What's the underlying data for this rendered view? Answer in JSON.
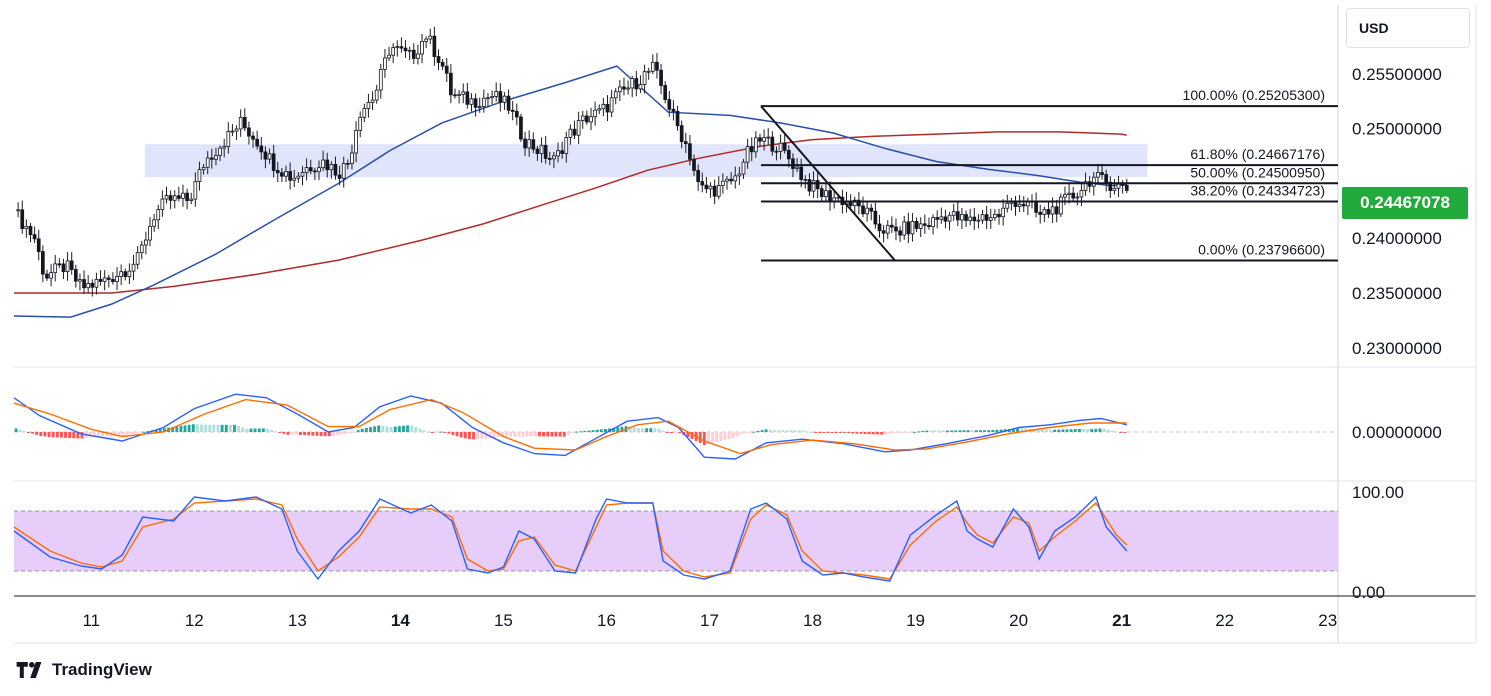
{
  "currency": "USD",
  "current_price": "0.24467078",
  "brand": "TradingView",
  "colors": {
    "bull": "#22ab94",
    "bear": "#f23645",
    "ma_fast": "#2a4fa8",
    "ma_slow": "#b22a2a",
    "zone": "#d6dcfb",
    "macd_line": "#2962ff",
    "signal_line": "#ff6d00",
    "rsi_band": "#e6cdfa",
    "price_tag": "#22ab3c"
  },
  "chart_data": [
    {
      "type": "candlestick",
      "panel": "price",
      "ylim": [
        0.2275,
        0.262
      ],
      "y_ticks": [
        "0.25500000",
        "0.25000000",
        "0.24000000",
        "0.23500000",
        "0.23000000"
      ],
      "x_ticks": [
        "11",
        "12",
        "13",
        "14",
        "15",
        "16",
        "17",
        "18",
        "19",
        "20",
        "21",
        "22",
        "23"
      ],
      "x_tick_positions": [
        11,
        12,
        13,
        14,
        15,
        16,
        17,
        18,
        19,
        20,
        21,
        22,
        23
      ],
      "bold_ticks": [
        "14",
        "21"
      ],
      "xlim": [
        10.25,
        23.1
      ],
      "close_path": [
        [
          10.25,
          0.2425
        ],
        [
          10.45,
          0.24
        ],
        [
          10.55,
          0.2365
        ],
        [
          10.75,
          0.2375
        ],
        [
          10.9,
          0.2355
        ],
        [
          11.1,
          0.236
        ],
        [
          11.3,
          0.237
        ],
        [
          11.45,
          0.238
        ],
        [
          11.6,
          0.242
        ],
        [
          11.75,
          0.2435
        ],
        [
          11.95,
          0.2435
        ],
        [
          12.1,
          0.247
        ],
        [
          12.3,
          0.249
        ],
        [
          12.45,
          0.2505
        ],
        [
          12.6,
          0.249
        ],
        [
          12.75,
          0.247
        ],
        [
          12.95,
          0.2455
        ],
        [
          13.1,
          0.2465
        ],
        [
          13.25,
          0.247
        ],
        [
          13.4,
          0.246
        ],
        [
          13.5,
          0.247
        ],
        [
          13.6,
          0.2515
        ],
        [
          13.75,
          0.253
        ],
        [
          13.9,
          0.2575
        ],
        [
          14.1,
          0.2565
        ],
        [
          14.25,
          0.2585
        ],
        [
          14.4,
          0.256
        ],
        [
          14.5,
          0.253
        ],
        [
          14.7,
          0.2525
        ],
        [
          14.9,
          0.253
        ],
        [
          15.05,
          0.252
        ],
        [
          15.2,
          0.249
        ],
        [
          15.35,
          0.248
        ],
        [
          15.5,
          0.247
        ],
        [
          15.6,
          0.249
        ],
        [
          15.8,
          0.251
        ],
        [
          15.95,
          0.2515
        ],
        [
          16.1,
          0.253
        ],
        [
          16.25,
          0.254
        ],
        [
          16.45,
          0.2555
        ],
        [
          16.55,
          0.2535
        ],
        [
          16.65,
          0.251
        ],
        [
          16.8,
          0.248
        ],
        [
          16.9,
          0.2445
        ],
        [
          17.1,
          0.2445
        ],
        [
          17.25,
          0.2455
        ],
        [
          17.35,
          0.2475
        ],
        [
          17.5,
          0.249
        ],
        [
          17.65,
          0.2485
        ],
        [
          17.8,
          0.247
        ],
        [
          17.95,
          0.245
        ],
        [
          18.1,
          0.244
        ],
        [
          18.3,
          0.2435
        ],
        [
          18.5,
          0.2425
        ],
        [
          18.65,
          0.241
        ],
        [
          18.8,
          0.2405
        ],
        [
          18.95,
          0.241
        ],
        [
          19.1,
          0.2412
        ],
        [
          19.3,
          0.2422
        ],
        [
          19.5,
          0.2415
        ],
        [
          19.65,
          0.242
        ],
        [
          19.8,
          0.242
        ],
        [
          19.95,
          0.2435
        ],
        [
          20.1,
          0.243
        ],
        [
          20.2,
          0.242
        ],
        [
          20.4,
          0.243
        ],
        [
          20.55,
          0.244
        ],
        [
          20.7,
          0.2455
        ],
        [
          20.9,
          0.245
        ],
        [
          21.05,
          0.2445
        ]
      ],
      "ma_fast": [
        [
          10.25,
          0.2329
        ],
        [
          10.8,
          0.2328
        ],
        [
          11.2,
          0.234
        ],
        [
          11.6,
          0.2357
        ],
        [
          12.2,
          0.2385
        ],
        [
          12.8,
          0.2418
        ],
        [
          13.4,
          0.245
        ],
        [
          13.9,
          0.248
        ],
        [
          14.4,
          0.2505
        ],
        [
          15.0,
          0.2525
        ],
        [
          15.6,
          0.2542
        ],
        [
          16.1,
          0.2557
        ],
        [
          16.6,
          0.2515
        ],
        [
          17.2,
          0.2512
        ],
        [
          17.7,
          0.2505
        ],
        [
          18.2,
          0.2496
        ],
        [
          18.7,
          0.2482
        ],
        [
          19.2,
          0.247
        ],
        [
          19.7,
          0.2463
        ],
        [
          20.2,
          0.2457
        ],
        [
          20.6,
          0.2451
        ],
        [
          20.9,
          0.2448
        ],
        [
          21.05,
          0.2449
        ]
      ],
      "ma_slow": [
        [
          10.25,
          0.235
        ],
        [
          11.2,
          0.235
        ],
        [
          11.8,
          0.2356
        ],
        [
          12.6,
          0.2367
        ],
        [
          13.4,
          0.238
        ],
        [
          14.2,
          0.2398
        ],
        [
          14.8,
          0.2413
        ],
        [
          15.4,
          0.2431
        ],
        [
          15.9,
          0.2446
        ],
        [
          16.4,
          0.2462
        ],
        [
          16.9,
          0.2473
        ],
        [
          17.5,
          0.2484
        ],
        [
          18.0,
          0.249
        ],
        [
          18.6,
          0.2493
        ],
        [
          19.2,
          0.2495
        ],
        [
          19.8,
          0.2497
        ],
        [
          20.4,
          0.2497
        ],
        [
          21.0,
          0.2495
        ],
        [
          21.05,
          0.2494
        ]
      ],
      "zone": {
        "x": [
          11.52,
          21.25
        ],
        "y": [
          0.24557,
          0.24857
        ]
      },
      "fibonacci": {
        "x": [
          17.5,
          23.1
        ],
        "levels": [
          {
            "label": "100.00% (0.25205300)",
            "value": 0.252053
          },
          {
            "label": "61.80% (0.24667176)",
            "value": 0.24667176
          },
          {
            "label": "50.00% (0.24500950)",
            "value": 0.2450095
          },
          {
            "label": "38.20% (0.24334723)",
            "value": 0.24334723
          },
          {
            "label": "0.00% (0.23796600)",
            "value": 0.237966
          }
        ],
        "trendline": [
          [
            17.5,
            0.25205
          ],
          [
            18.8,
            0.23797
          ]
        ]
      },
      "last_price": 0.24467078
    },
    {
      "type": "macd",
      "panel": "macd",
      "ylim": [
        -1,
        1
      ],
      "y_ticks": [
        "0.00000000"
      ],
      "macd": [
        [
          10.25,
          0.38
        ],
        [
          10.5,
          0.18
        ],
        [
          10.9,
          -0.02
        ],
        [
          11.3,
          -0.1
        ],
        [
          11.7,
          0.05
        ],
        [
          12.0,
          0.26
        ],
        [
          12.4,
          0.42
        ],
        [
          12.7,
          0.38
        ],
        [
          13.0,
          0.2
        ],
        [
          13.3,
          0.0
        ],
        [
          13.55,
          0.05
        ],
        [
          13.8,
          0.28
        ],
        [
          14.1,
          0.4
        ],
        [
          14.4,
          0.32
        ],
        [
          14.7,
          0.05
        ],
        [
          15.0,
          -0.12
        ],
        [
          15.3,
          -0.24
        ],
        [
          15.6,
          -0.26
        ],
        [
          15.9,
          -0.07
        ],
        [
          16.2,
          0.12
        ],
        [
          16.5,
          0.16
        ],
        [
          16.7,
          0.05
        ],
        [
          16.95,
          -0.28
        ],
        [
          17.25,
          -0.3
        ],
        [
          17.55,
          -0.12
        ],
        [
          17.9,
          -0.08
        ],
        [
          18.3,
          -0.13
        ],
        [
          18.7,
          -0.22
        ],
        [
          18.95,
          -0.2
        ],
        [
          19.3,
          -0.13
        ],
        [
          19.7,
          -0.04
        ],
        [
          20.0,
          0.05
        ],
        [
          20.3,
          0.08
        ],
        [
          20.6,
          0.13
        ],
        [
          20.8,
          0.15
        ],
        [
          21.05,
          0.08
        ]
      ],
      "signal": [
        [
          10.25,
          0.32
        ],
        [
          10.6,
          0.2
        ],
        [
          11.0,
          0.03
        ],
        [
          11.3,
          -0.05
        ],
        [
          11.7,
          0.0
        ],
        [
          12.1,
          0.2
        ],
        [
          12.5,
          0.36
        ],
        [
          12.9,
          0.3
        ],
        [
          13.3,
          0.06
        ],
        [
          13.6,
          0.06
        ],
        [
          13.9,
          0.25
        ],
        [
          14.3,
          0.36
        ],
        [
          14.6,
          0.22
        ],
        [
          15.0,
          -0.05
        ],
        [
          15.3,
          -0.18
        ],
        [
          15.7,
          -0.2
        ],
        [
          16.0,
          -0.05
        ],
        [
          16.3,
          0.08
        ],
        [
          16.6,
          0.12
        ],
        [
          16.95,
          -0.1
        ],
        [
          17.3,
          -0.24
        ],
        [
          17.6,
          -0.14
        ],
        [
          18.0,
          -0.09
        ],
        [
          18.4,
          -0.13
        ],
        [
          18.8,
          -0.2
        ],
        [
          19.1,
          -0.19
        ],
        [
          19.5,
          -0.11
        ],
        [
          19.9,
          -0.02
        ],
        [
          20.3,
          0.05
        ],
        [
          20.7,
          0.1
        ],
        [
          21.05,
          0.1
        ]
      ]
    },
    {
      "type": "stochastic",
      "panel": "oscillator",
      "ylim": [
        0,
        100
      ],
      "y_ticks": [
        "100.00",
        "0.00"
      ],
      "band": [
        20,
        80
      ],
      "k_line": [
        [
          10.25,
          60
        ],
        [
          10.6,
          34
        ],
        [
          10.9,
          25
        ],
        [
          11.1,
          22
        ],
        [
          11.3,
          36
        ],
        [
          11.5,
          74
        ],
        [
          11.8,
          70
        ],
        [
          12.0,
          94
        ],
        [
          12.3,
          90
        ],
        [
          12.6,
          94
        ],
        [
          12.85,
          82
        ],
        [
          13.0,
          40
        ],
        [
          13.2,
          12
        ],
        [
          13.4,
          40
        ],
        [
          13.6,
          60
        ],
        [
          13.8,
          92
        ],
        [
          14.1,
          78
        ],
        [
          14.3,
          86
        ],
        [
          14.5,
          70
        ],
        [
          14.65,
          22
        ],
        [
          14.85,
          18
        ],
        [
          15.0,
          24
        ],
        [
          15.15,
          60
        ],
        [
          15.3,
          52
        ],
        [
          15.5,
          20
        ],
        [
          15.7,
          18
        ],
        [
          15.9,
          72
        ],
        [
          16.0,
          92
        ],
        [
          16.2,
          88
        ],
        [
          16.45,
          88
        ],
        [
          16.55,
          30
        ],
        [
          16.75,
          16
        ],
        [
          16.95,
          12
        ],
        [
          17.2,
          20
        ],
        [
          17.4,
          82
        ],
        [
          17.55,
          88
        ],
        [
          17.75,
          72
        ],
        [
          17.9,
          30
        ],
        [
          18.1,
          16
        ],
        [
          18.3,
          18
        ],
        [
          18.5,
          14
        ],
        [
          18.75,
          10
        ],
        [
          18.95,
          56
        ],
        [
          19.2,
          76
        ],
        [
          19.4,
          90
        ],
        [
          19.5,
          60
        ],
        [
          19.6,
          52
        ],
        [
          19.75,
          44
        ],
        [
          19.95,
          82
        ],
        [
          20.1,
          64
        ],
        [
          20.2,
          32
        ],
        [
          20.35,
          60
        ],
        [
          20.55,
          74
        ],
        [
          20.75,
          94
        ],
        [
          20.85,
          64
        ],
        [
          20.95,
          52
        ],
        [
          21.05,
          40
        ]
      ],
      "d_line": [
        [
          10.25,
          64
        ],
        [
          10.6,
          40
        ],
        [
          10.9,
          28
        ],
        [
          11.1,
          24
        ],
        [
          11.3,
          30
        ],
        [
          11.5,
          64
        ],
        [
          11.8,
          72
        ],
        [
          12.0,
          88
        ],
        [
          12.3,
          90
        ],
        [
          12.6,
          92
        ],
        [
          12.85,
          86
        ],
        [
          13.0,
          52
        ],
        [
          13.2,
          20
        ],
        [
          13.4,
          34
        ],
        [
          13.6,
          54
        ],
        [
          13.8,
          84
        ],
        [
          14.1,
          82
        ],
        [
          14.3,
          82
        ],
        [
          14.5,
          74
        ],
        [
          14.65,
          32
        ],
        [
          14.85,
          20
        ],
        [
          15.0,
          22
        ],
        [
          15.15,
          50
        ],
        [
          15.3,
          54
        ],
        [
          15.5,
          26
        ],
        [
          15.7,
          20
        ],
        [
          15.9,
          64
        ],
        [
          16.0,
          86
        ],
        [
          16.2,
          88
        ],
        [
          16.45,
          88
        ],
        [
          16.55,
          40
        ],
        [
          16.75,
          20
        ],
        [
          16.95,
          14
        ],
        [
          17.2,
          18
        ],
        [
          17.4,
          72
        ],
        [
          17.55,
          86
        ],
        [
          17.75,
          76
        ],
        [
          17.9,
          40
        ],
        [
          18.1,
          20
        ],
        [
          18.3,
          18
        ],
        [
          18.5,
          16
        ],
        [
          18.75,
          12
        ],
        [
          18.95,
          46
        ],
        [
          19.2,
          70
        ],
        [
          19.4,
          84
        ],
        [
          19.5,
          68
        ],
        [
          19.6,
          56
        ],
        [
          19.75,
          48
        ],
        [
          19.95,
          74
        ],
        [
          20.1,
          68
        ],
        [
          20.2,
          40
        ],
        [
          20.35,
          54
        ],
        [
          20.55,
          70
        ],
        [
          20.75,
          88
        ],
        [
          20.85,
          72
        ],
        [
          20.95,
          56
        ],
        [
          21.05,
          46
        ]
      ]
    }
  ]
}
